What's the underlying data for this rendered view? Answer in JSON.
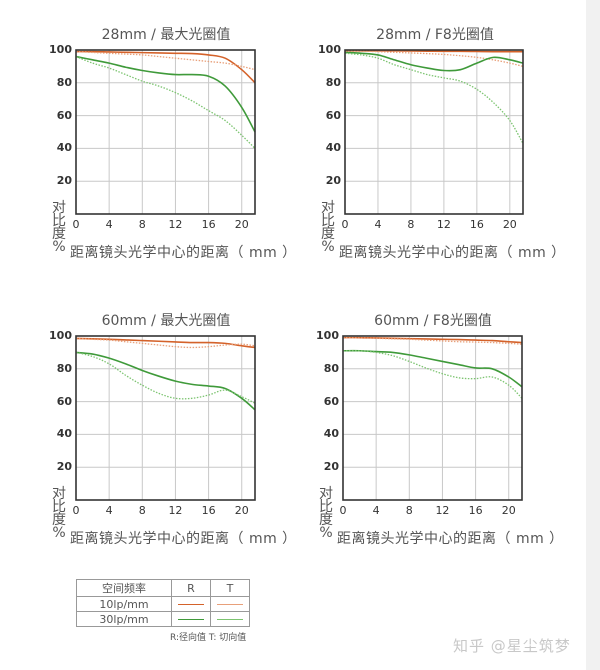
{
  "colors": {
    "r10": "#d4622a",
    "t10": "#e8a07a",
    "r30": "#3f9a3a",
    "t30": "#7cc470",
    "grid": "#c8c8c8",
    "frame": "#333333"
  },
  "axis": {
    "ylabel_chars": [
      "对",
      "比",
      "度",
      "%"
    ],
    "xlabel": "距离镜头光学中心的距离（ mm ）",
    "yticks": [
      "100",
      "80",
      "60",
      "40",
      "20"
    ],
    "xticks": [
      "0",
      "4",
      "8",
      "12",
      "16",
      "20"
    ]
  },
  "legend": {
    "header": [
      "空间频率",
      "R",
      "T"
    ],
    "rows": [
      {
        "label": "10lp/mm"
      },
      {
        "label": "30lp/mm"
      }
    ],
    "note": "R:径向值  T:  切向值"
  },
  "watermark": "知乎 @星尘筑梦",
  "chart_data": [
    {
      "type": "line",
      "title": "28mm / 最大光圈值",
      "xlabel": "距离镜头光学中心的距离（mm）",
      "ylabel": "对比度%",
      "xlim": [
        0,
        21.6
      ],
      "ylim": [
        0,
        100
      ],
      "grid": true,
      "x": [
        0,
        2,
        4,
        6,
        8,
        10,
        12,
        14,
        16,
        18,
        20,
        21.6
      ],
      "series": [
        {
          "name": "10lp/mm R",
          "style": "solid",
          "values": [
            99,
            99,
            98.8,
            98.6,
            98.4,
            98.2,
            98,
            97.8,
            97,
            95,
            88,
            80
          ]
        },
        {
          "name": "10lp/mm T",
          "style": "dotted",
          "values": [
            99,
            98.5,
            98,
            97.5,
            97,
            96,
            95,
            94,
            93,
            92,
            90,
            88
          ]
        },
        {
          "name": "30lp/mm R",
          "style": "solid",
          "values": [
            96,
            94,
            92,
            89.5,
            87.5,
            86,
            85,
            85,
            84,
            78,
            65,
            50
          ]
        },
        {
          "name": "30lp/mm T",
          "style": "dotted",
          "values": [
            96,
            92,
            89,
            85,
            81,
            78,
            74,
            69,
            63,
            57,
            48,
            40
          ]
        }
      ]
    },
    {
      "type": "line",
      "title": "28mm / F8光圈值",
      "xlabel": "距离镜头光学中心的距离（mm）",
      "ylabel": "对比度%",
      "xlim": [
        0,
        21.6
      ],
      "ylim": [
        0,
        100
      ],
      "grid": true,
      "x": [
        0,
        2,
        4,
        6,
        8,
        10,
        12,
        14,
        16,
        18,
        20,
        21.6
      ],
      "series": [
        {
          "name": "10lp/mm R",
          "style": "solid",
          "values": [
            99.5,
            99.5,
            99.5,
            99.5,
            99.4,
            99.3,
            99.2,
            99.2,
            99.1,
            99,
            99,
            99
          ]
        },
        {
          "name": "10lp/mm T",
          "style": "dotted",
          "values": [
            99.5,
            99.3,
            99,
            98.6,
            98.2,
            97.8,
            97.3,
            96.5,
            95.5,
            94,
            92,
            90
          ]
        },
        {
          "name": "30lp/mm R",
          "style": "solid",
          "values": [
            98.5,
            98,
            97,
            94,
            91,
            89,
            87.5,
            88,
            92,
            95.5,
            94,
            92
          ]
        },
        {
          "name": "30lp/mm T",
          "style": "dotted",
          "values": [
            98,
            97,
            95,
            91,
            88,
            85,
            83,
            81,
            76,
            68,
            57,
            43
          ]
        }
      ]
    },
    {
      "type": "line",
      "title": "60mm / 最大光圈值",
      "xlabel": "距离镜头光学中心的距离（mm）",
      "ylabel": "对比度%",
      "xlim": [
        0,
        21.6
      ],
      "ylim": [
        0,
        100
      ],
      "grid": true,
      "x": [
        0,
        2,
        4,
        6,
        8,
        10,
        12,
        14,
        16,
        18,
        20,
        21.6
      ],
      "series": [
        {
          "name": "10lp/mm R",
          "style": "solid",
          "values": [
            98.5,
            98.3,
            98,
            97.6,
            97.2,
            96.8,
            96.4,
            96,
            96,
            95.5,
            94,
            93
          ]
        },
        {
          "name": "10lp/mm T",
          "style": "dotted",
          "values": [
            98.5,
            98,
            97.5,
            96.5,
            95.5,
            94.5,
            93.5,
            93,
            93.5,
            94.5,
            95,
            94
          ]
        },
        {
          "name": "30lp/mm R",
          "style": "solid",
          "values": [
            90,
            89,
            86.5,
            83,
            79,
            75.5,
            72.5,
            70.5,
            69.5,
            68,
            62,
            55
          ]
        },
        {
          "name": "30lp/mm T",
          "style": "dotted",
          "values": [
            90,
            87.5,
            83,
            76,
            70,
            65,
            62,
            62,
            64,
            67,
            63,
            59
          ]
        }
      ]
    },
    {
      "type": "line",
      "title": "60mm / F8光圈值",
      "xlabel": "距离镜头光学中心的距离（mm）",
      "ylabel": "对比度%",
      "xlim": [
        0,
        21.6
      ],
      "ylim": [
        0,
        100
      ],
      "grid": true,
      "x": [
        0,
        2,
        4,
        6,
        8,
        10,
        12,
        14,
        16,
        18,
        20,
        21.6
      ],
      "series": [
        {
          "name": "10lp/mm R",
          "style": "solid",
          "values": [
            99,
            99,
            98.8,
            98.6,
            98.4,
            98.2,
            98,
            97.8,
            97.5,
            97.2,
            96.5,
            96
          ]
        },
        {
          "name": "10lp/mm T",
          "style": "dotted",
          "values": [
            99,
            98.8,
            98.6,
            98.3,
            98,
            97.5,
            97,
            96.5,
            96.3,
            96,
            95.5,
            95
          ]
        },
        {
          "name": "30lp/mm R",
          "style": "solid",
          "values": [
            91,
            91,
            90.5,
            90,
            88.5,
            86.5,
            84.5,
            82.5,
            80.5,
            80,
            75,
            69
          ]
        },
        {
          "name": "30lp/mm T",
          "style": "dotted",
          "values": [
            91,
            91,
            90,
            88,
            84.5,
            80.5,
            77,
            74.5,
            74,
            75,
            70,
            62
          ]
        }
      ]
    }
  ]
}
